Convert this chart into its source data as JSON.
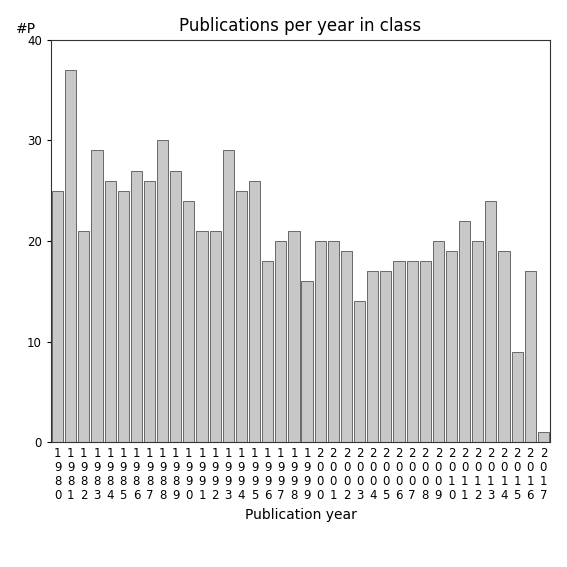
{
  "title": "Publications per year in class",
  "xlabel": "Publication year",
  "ylabel": "#P",
  "years": [
    1980,
    1981,
    1982,
    1983,
    1984,
    1985,
    1986,
    1987,
    1988,
    1989,
    1990,
    1991,
    1992,
    1993,
    1994,
    1995,
    1996,
    1997,
    1998,
    1999,
    2000,
    2001,
    2002,
    2003,
    2004,
    2005,
    2006,
    2007,
    2008,
    2009,
    2010,
    2011,
    2012,
    2013,
    2014,
    2015,
    2016,
    2017
  ],
  "values": [
    25,
    37,
    21,
    29,
    26,
    25,
    27,
    26,
    30,
    27,
    24,
    21,
    21,
    29,
    25,
    26,
    18,
    20,
    21,
    16,
    20,
    20,
    19,
    14,
    17,
    17,
    18,
    18,
    18,
    20,
    19,
    22,
    20,
    24,
    19,
    9,
    17,
    1
  ],
  "bar_color": "#c8c8c8",
  "bar_edge_color": "#555555",
  "ylim": [
    0,
    40
  ],
  "yticks": [
    0,
    10,
    20,
    30,
    40
  ],
  "background_color": "#ffffff",
  "title_fontsize": 12,
  "label_fontsize": 10,
  "tick_fontsize": 8.5
}
